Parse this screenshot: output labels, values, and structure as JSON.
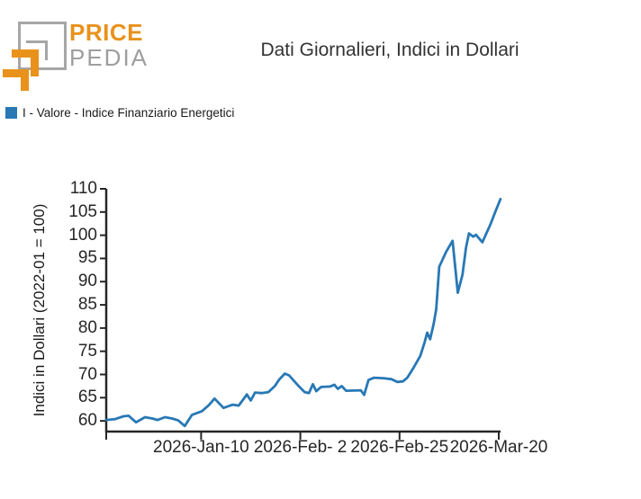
{
  "header": {
    "logo": {
      "word_top": "PRICE",
      "word_bottom": "PEDIA"
    },
    "title": "Dati Giornalieri, Indici in Dollari"
  },
  "legend": {
    "label": "I - Valore - Indice Finanziario Energetici",
    "swatch_color": "#2878b5"
  },
  "colors": {
    "line": "#2878b5",
    "axis": "#262626",
    "logo_orange": "#e8921c",
    "logo_gray": "#a6a6a6"
  },
  "chart_data": {
    "type": "line",
    "title": "Dati Giornalieri, Indici in Dollari",
    "xlabel": "",
    "ylabel": "Indici in Dollari (2022-01 = 100)",
    "grid": false,
    "legend_position": "top-left",
    "x_unit": "calendar days since 2025-12-19",
    "xlim": [
      0,
      91.42
    ],
    "ylim": [
      57.7,
      110
    ],
    "y_ticks": [
      60,
      65,
      70,
      75,
      80,
      85,
      90,
      95,
      100,
      105,
      110
    ],
    "x_ticks": [
      {
        "d": 0,
        "label": ""
      },
      {
        "d": 22,
        "label": "2026-Jan-10"
      },
      {
        "d": 45,
        "label": "2026-Feb- 2"
      },
      {
        "d": 68,
        "label": "2026-Feb-25"
      },
      {
        "d": 91,
        "label": "2026-Mar-20"
      }
    ],
    "series": [
      {
        "name": "I - Valore - Indice Finanziario Energetici",
        "color": "#2878b5",
        "points": [
          [
            0,
            60.2
          ],
          [
            2.1,
            60.4
          ],
          [
            4,
            61.0
          ],
          [
            5.2,
            61.1
          ],
          [
            6.9,
            59.7
          ],
          [
            9,
            60.8
          ],
          [
            10.7,
            60.5
          ],
          [
            11.9,
            60.2
          ],
          [
            13.6,
            60.8
          ],
          [
            15.3,
            60.5
          ],
          [
            16.7,
            60.1
          ],
          [
            18.2,
            58.9
          ],
          [
            19.9,
            61.3
          ],
          [
            22.2,
            62.1
          ],
          [
            23.8,
            63.4
          ],
          [
            25.1,
            64.8
          ],
          [
            27.2,
            62.8
          ],
          [
            29.3,
            63.5
          ],
          [
            30.7,
            63.3
          ],
          [
            32,
            64.9
          ],
          [
            32.6,
            65.7
          ],
          [
            33.5,
            64.4
          ],
          [
            34.5,
            66.1
          ],
          [
            36,
            66.0
          ],
          [
            37.6,
            66.2
          ],
          [
            39.1,
            67.5
          ],
          [
            40.1,
            68.9
          ],
          [
            41.4,
            70.2
          ],
          [
            42.4,
            69.8
          ],
          [
            44.7,
            67.4
          ],
          [
            46,
            66.2
          ],
          [
            47,
            66.0
          ],
          [
            47.9,
            67.9
          ],
          [
            48.7,
            66.4
          ],
          [
            49.8,
            67.3
          ],
          [
            51.9,
            67.4
          ],
          [
            52.9,
            67.8
          ],
          [
            53.7,
            66.9
          ],
          [
            54.6,
            67.5
          ],
          [
            55.6,
            66.5
          ],
          [
            59,
            66.6
          ],
          [
            59.8,
            65.6
          ],
          [
            60.8,
            68.8
          ],
          [
            62.1,
            69.3
          ],
          [
            64.2,
            69.2
          ],
          [
            66.1,
            69.0
          ],
          [
            67.5,
            68.4
          ],
          [
            68.8,
            68.5
          ],
          [
            69.8,
            69.3
          ],
          [
            71.1,
            71.2
          ],
          [
            72.8,
            74.0
          ],
          [
            73.8,
            76.9
          ],
          [
            74.4,
            79.0
          ],
          [
            75.1,
            77.6
          ],
          [
            75.9,
            80.8
          ],
          [
            76.5,
            84.0
          ],
          [
            77.2,
            93.2
          ],
          [
            78.8,
            96.4
          ],
          [
            80.3,
            98.8
          ],
          [
            81.5,
            87.6
          ],
          [
            82.6,
            91.5
          ],
          [
            83.4,
            97.3
          ],
          [
            84.1,
            100.4
          ],
          [
            85.1,
            99.7
          ],
          [
            85.7,
            100.1
          ],
          [
            87.2,
            98.5
          ],
          [
            89.1,
            102.4
          ],
          [
            90.1,
            104.8
          ],
          [
            91.4,
            107.8
          ]
        ]
      }
    ]
  }
}
